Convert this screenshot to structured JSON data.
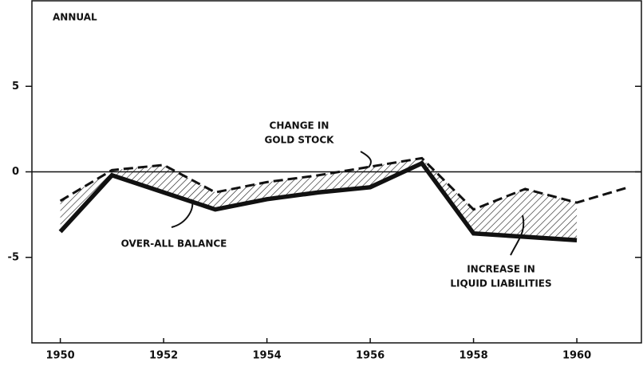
{
  "chart_data": {
    "type": "line",
    "x": [
      1950,
      1951,
      1952,
      1953,
      1954,
      1955,
      1956,
      1957,
      1958,
      1959,
      1960,
      1961
    ],
    "series": [
      {
        "color": "#111111",
        "values": [
          -3.5,
          -0.2,
          -1.2,
          -2.2,
          -1.6,
          -1.2,
          -0.9,
          0.5,
          -3.6,
          -3.8,
          -4.0,
          null
        ]
      },
      {
        "color": "#111111",
        "dashed": true,
        "values": [
          -1.7,
          0.1,
          0.4,
          -1.2,
          -0.6,
          -0.2,
          0.3,
          0.8,
          -2.2,
          -1.0,
          -1.8,
          -0.9
        ]
      }
    ],
    "annotations": [
      {
        "lines": [
          "ANNUAL"
        ]
      },
      {
        "lines": [
          "CHANGE IN",
          "GOLD STOCK"
        ]
      },
      {
        "lines": [
          "OVER-ALL BALANCE"
        ]
      },
      {
        "lines": [
          "INCREASE IN",
          "LIQUID LIABILITIES"
        ]
      }
    ],
    "xlim": [
      1949.45,
      1961.25
    ],
    "ylim": [
      -10,
      10
    ],
    "xticks": [
      1950,
      1952,
      1954,
      1956,
      1958,
      1960
    ],
    "yticks": [
      5,
      0,
      -5
    ]
  }
}
